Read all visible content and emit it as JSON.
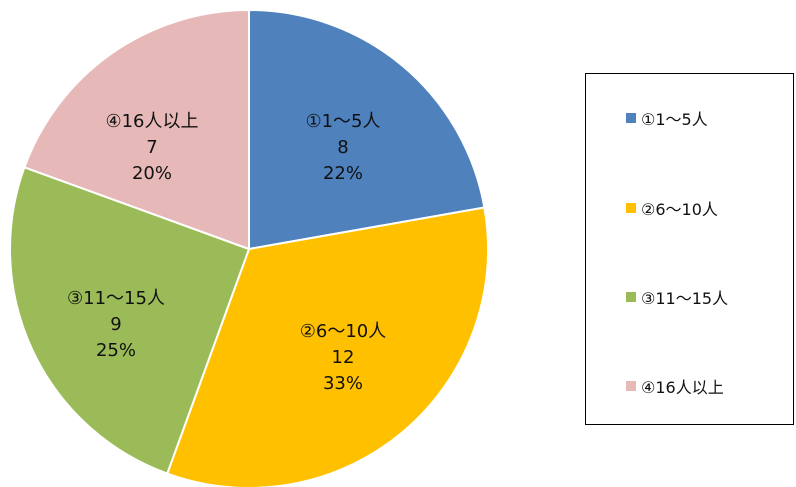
{
  "chart_data": {
    "type": "pie",
    "categories": [
      "①1～5人",
      "②6～10人",
      "③11～15人",
      "④16人以上"
    ],
    "values": [
      8,
      12,
      9,
      7
    ],
    "percents": [
      "22%",
      "33%",
      "25%",
      "20%"
    ],
    "colors": [
      "#4f81bd",
      "#ffc000",
      "#9bbb59",
      "#e6b9b8"
    ],
    "legend_position": "right",
    "title": ""
  }
}
